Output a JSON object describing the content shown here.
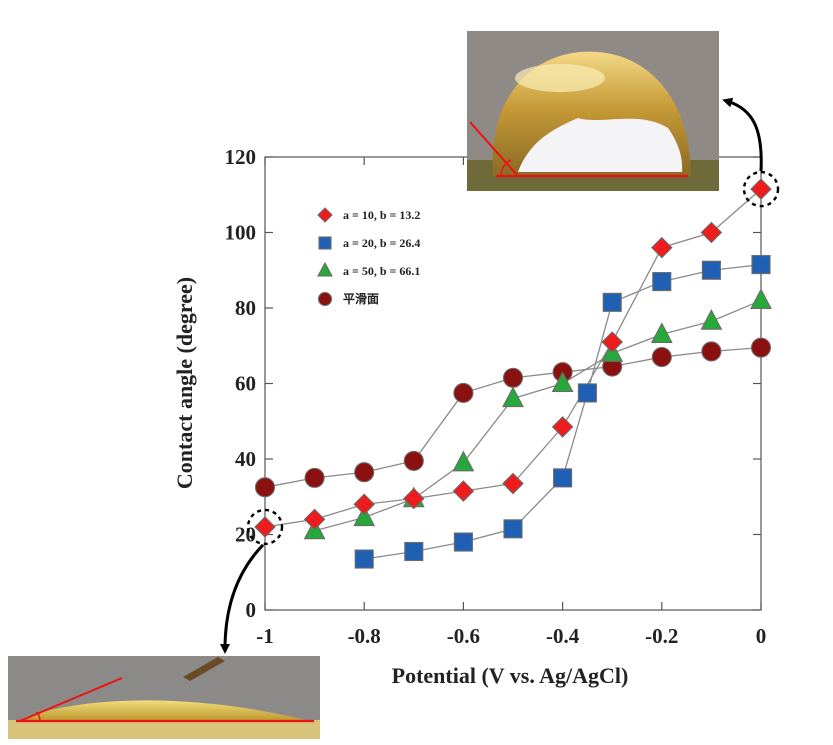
{
  "chart_data": {
    "type": "scatter",
    "xlabel": "Potential (V vs. Ag/AgCl)",
    "ylabel": "Contact angle (degree)",
    "xlim": [
      -1,
      0
    ],
    "ylim": [
      0,
      120
    ],
    "xticks": [
      "-1",
      "-0.8",
      "-0.6",
      "-0.4",
      "-0.2",
      "0"
    ],
    "yticks": [
      "0",
      "20",
      "40",
      "60",
      "80",
      "100",
      "120"
    ],
    "grid": false,
    "legend_position": "top-left",
    "series": [
      {
        "name": "a = 10, b = 13.2",
        "marker": "diamond",
        "color": "#ee1c1c",
        "points": [
          [
            -1,
            22
          ],
          [
            -0.9,
            24
          ],
          [
            -0.8,
            28
          ],
          [
            -0.7,
            29.5
          ],
          [
            -0.6,
            31.5
          ],
          [
            -0.5,
            33.5
          ],
          [
            -0.4,
            48.5
          ],
          [
            -0.3,
            71
          ],
          [
            -0.2,
            96
          ],
          [
            -0.1,
            100
          ],
          [
            0,
            111.5
          ]
        ]
      },
      {
        "name": "a = 20, b = 26.4",
        "marker": "square",
        "color": "#1f5fb4",
        "points": [
          [
            -0.8,
            13.5
          ],
          [
            -0.7,
            15.5
          ],
          [
            -0.6,
            18
          ],
          [
            -0.5,
            21.5
          ],
          [
            -0.4,
            35
          ],
          [
            -0.35,
            57.5
          ],
          [
            -0.3,
            81.5
          ],
          [
            -0.2,
            87
          ],
          [
            -0.1,
            90
          ],
          [
            0,
            91.5
          ]
        ]
      },
      {
        "name": "a = 50, b = 66.1",
        "marker": "triangle",
        "color": "#27a83a",
        "points": [
          [
            -0.9,
            21
          ],
          [
            -0.8,
            24.5
          ],
          [
            -0.7,
            29.5
          ],
          [
            -0.6,
            39
          ],
          [
            -0.5,
            56
          ],
          [
            -0.4,
            60
          ],
          [
            -0.3,
            68
          ],
          [
            -0.2,
            73
          ],
          [
            -0.1,
            76.5
          ],
          [
            0,
            82
          ]
        ]
      },
      {
        "name": "平滑面",
        "marker": "circle",
        "color": "#8b1010",
        "points": [
          [
            -1,
            32.5
          ],
          [
            -0.9,
            35
          ],
          [
            -0.8,
            36.5
          ],
          [
            -0.7,
            39.5
          ],
          [
            -0.6,
            57.5
          ],
          [
            -0.5,
            61.5
          ],
          [
            -0.4,
            63
          ],
          [
            -0.3,
            64.5
          ],
          [
            -0.2,
            67
          ],
          [
            -0.1,
            68.5
          ],
          [
            0,
            69.5
          ]
        ]
      }
    ],
    "highlighted_points": [
      {
        "x": -1,
        "y": 22
      },
      {
        "x": 0,
        "y": 111.5
      }
    ],
    "insets": [
      "droplet-photo-high-contact-angle",
      "droplet-photo-low-contact-angle"
    ]
  }
}
